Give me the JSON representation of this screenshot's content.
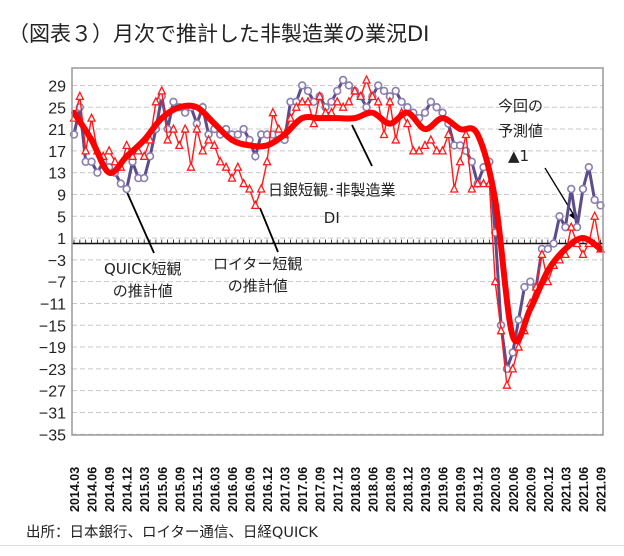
{
  "title": "（図表３）月次で推計した非製造業の業況DI",
  "source": "出所：日本銀行、ロイター通信、日経QUICK",
  "annotations": {
    "quick_line1": "QUICK短観",
    "quick_line2": "の推計値",
    "reuters_line1": "ロイター短観",
    "reuters_line2": "の推計値",
    "boj_line1": "日銀短観･非製造業",
    "boj_line2": "DI",
    "forecast_line1": "今回の",
    "forecast_line2": "予測値",
    "forecast_value": "▲1"
  },
  "colors": {
    "quick": "#5b4c8c",
    "reuters": "#ff1a1a",
    "boj": "#ff0000",
    "grid": "#c8c8c8",
    "frame": "#999999"
  },
  "chart_data": {
    "type": "line",
    "title": "（図表３）月次で推計した非製造業の業況DI",
    "xlabel": "",
    "ylabel": "",
    "ylim": [
      -35,
      29
    ],
    "yticks": [
      29,
      25,
      21,
      17,
      13,
      9,
      5,
      1,
      -3,
      -7,
      -11,
      -15,
      -19,
      -23,
      -27,
      -31,
      -35
    ],
    "grid": true,
    "x_start": "2014.03",
    "x_end": "2021.09",
    "x_frequency": "monthly",
    "xtick_labels": [
      "2014.03",
      "2014.06",
      "2014.09",
      "2014.12",
      "2015.03",
      "2015.06",
      "2015.09",
      "2015.12",
      "2016.03",
      "2016.06",
      "2016.09",
      "2016.12",
      "2017.03",
      "2017.06",
      "2017.09",
      "2017.12",
      "2018.03",
      "2018.06",
      "2018.09",
      "2018.12",
      "2019.03",
      "2019.06",
      "2019.09",
      "2019.12",
      "2020.03",
      "2020.06",
      "2020.09",
      "2020.12",
      "2021.03",
      "2021.06",
      "2021.09"
    ],
    "series": [
      {
        "name": "QUICK短観の推計値",
        "frequency": "monthly",
        "marker": "circle",
        "values": [
          20,
          25,
          15,
          15,
          13,
          15,
          14,
          13,
          11,
          10,
          15,
          12,
          12,
          16,
          21,
          27,
          21,
          26,
          25,
          24,
          25,
          22,
          25,
          20,
          21,
          20,
          21,
          20,
          20,
          21,
          19,
          16,
          20,
          20,
          20,
          20,
          19,
          26,
          26,
          29,
          28,
          26,
          27,
          25,
          26,
          28,
          30,
          29,
          28,
          27,
          25,
          27,
          29,
          28,
          27,
          28,
          26,
          25,
          24,
          23,
          24,
          26,
          25,
          24,
          22,
          18,
          18,
          17,
          15,
          11,
          14,
          15,
          2,
          -15,
          -23,
          -20,
          -14,
          -8,
          -7,
          -8,
          -1,
          -1,
          0,
          5,
          3,
          10,
          3,
          10,
          14,
          8,
          7
        ]
      },
      {
        "name": "ロイター短観の推計値",
        "frequency": "monthly",
        "marker": "triangle",
        "values": [
          23,
          27,
          17,
          23,
          17,
          16,
          17,
          15,
          14,
          18,
          16,
          17,
          16,
          19,
          26,
          28,
          19,
          21,
          18,
          21,
          14,
          21,
          17,
          19,
          18,
          15,
          14,
          12,
          14,
          11,
          10,
          7,
          10,
          15,
          24,
          21,
          20,
          23,
          25,
          26,
          26,
          22,
          27,
          24,
          24,
          26,
          25,
          26,
          28,
          27,
          30,
          27,
          26,
          20,
          26,
          19,
          24,
          22,
          17,
          17,
          18,
          19,
          17,
          17,
          20,
          10,
          15,
          20,
          10,
          11,
          11,
          11,
          -7,
          -16,
          -26,
          -23,
          -19,
          -16,
          -11,
          -8,
          -2,
          -7,
          -4,
          -3,
          -2,
          3,
          0,
          -2,
          0,
          5,
          -1
        ]
      },
      {
        "name": "日銀短観･非製造業DI",
        "frequency": "quarterly",
        "marker": "none",
        "values": [
          24,
          19,
          13,
          16,
          19,
          23,
          25,
          25,
          22,
          19,
          18,
          18,
          20,
          23,
          23,
          23,
          23,
          24,
          22,
          24,
          21,
          23,
          21,
          20,
          8,
          -17,
          -12,
          -5,
          -1,
          1,
          -1
        ]
      }
    ]
  }
}
